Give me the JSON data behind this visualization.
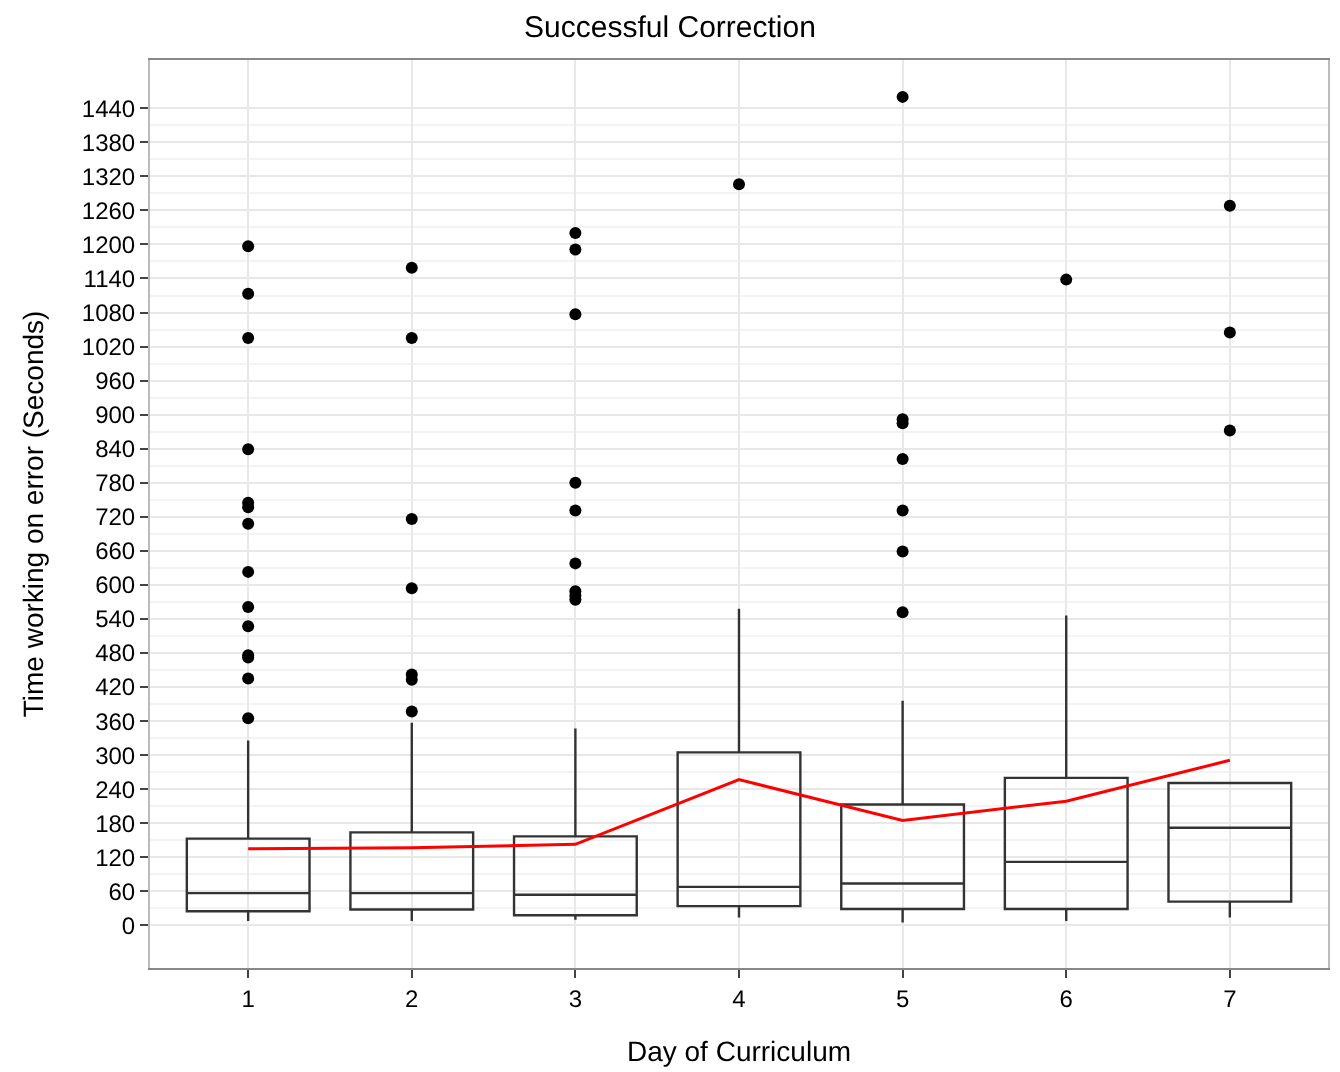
{
  "chart_data": {
    "type": "box",
    "title": "Successful Correction",
    "xlabel": "Day of Curriculum",
    "ylabel": "Time working on error (Seconds)",
    "categories": [
      "1",
      "2",
      "3",
      "4",
      "5",
      "6",
      "7"
    ],
    "boxes": [
      {
        "low": 8,
        "q1": 25,
        "median": 57,
        "q3": 153,
        "high": 326,
        "outliers": [
          1197,
          1113,
          1035,
          839,
          745,
          737,
          708,
          623,
          561,
          527,
          476,
          472,
          435,
          365
        ]
      },
      {
        "low": 8,
        "q1": 28,
        "median": 57,
        "q3": 164,
        "high": 357,
        "outliers": [
          1159,
          1035,
          716,
          594,
          442,
          433,
          377
        ]
      },
      {
        "low": 10,
        "q1": 18,
        "median": 54,
        "q3": 157,
        "high": 347,
        "outliers": [
          1220,
          1191,
          1077,
          780,
          731,
          638,
          589,
          581,
          574
        ]
      },
      {
        "low": 14,
        "q1": 34,
        "median": 68,
        "q3": 305,
        "high": 558,
        "outliers": [
          1306
        ]
      },
      {
        "low": 5,
        "q1": 29,
        "median": 74,
        "q3": 213,
        "high": 396,
        "outliers": [
          1460,
          892,
          885,
          822,
          731,
          659,
          552
        ]
      },
      {
        "low": 8,
        "q1": 29,
        "median": 112,
        "q3": 260,
        "high": 546,
        "outliers": [
          1138
        ]
      },
      {
        "low": 14,
        "q1": 42,
        "median": 172,
        "q3": 251,
        "high": 251,
        "outliers": [
          1268,
          1045,
          872
        ]
      }
    ],
    "color": "#333333",
    "series": [
      {
        "type": "line",
        "color": "#ff0000",
        "marker": "none",
        "values": [
          135,
          137,
          143,
          257,
          185,
          219,
          291
        ]
      }
    ],
    "ylim": [
      -75,
      1525
    ],
    "yticks": [
      0,
      60,
      120,
      180,
      240,
      300,
      360,
      420,
      480,
      540,
      600,
      660,
      720,
      780,
      840,
      900,
      960,
      1020,
      1080,
      1140,
      1200,
      1260,
      1320,
      1380,
      1440
    ],
    "grid": true,
    "marker": "circle"
  }
}
